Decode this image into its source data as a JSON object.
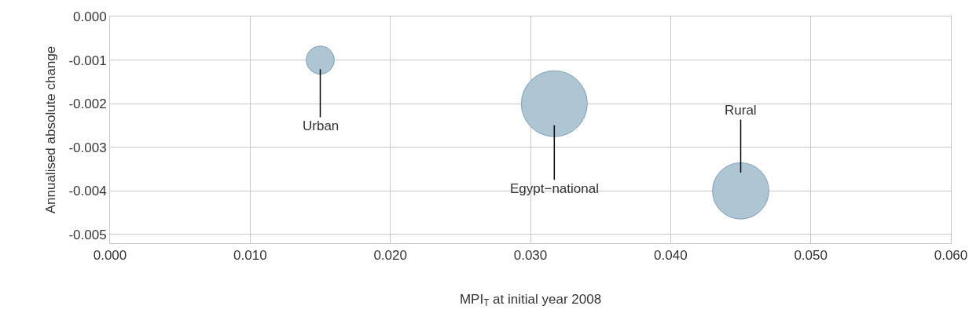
{
  "chart_data": {
    "type": "bubble",
    "xlabel": "MPI$_{T}$ at initial year 2008",
    "ylabel": "Annualised absolute change",
    "x": [
      0.015,
      0.0317,
      0.045
    ],
    "series": [
      {
        "color": "#aec5d4",
        "values": [
          -0.001,
          -0.002,
          -0.004
        ],
        "sizes": [
          0.18,
          1,
          0.73
        ]
      }
    ],
    "annotations": [
      {
        "text": "Urban",
        "x": 0.015,
        "y": -0.001
      },
      {
        "text": "Egypt−national",
        "x": 0.0317,
        "y": -0.002
      },
      {
        "text": "Rural",
        "x": 0.045,
        "y": -0.004
      }
    ],
    "xlim": [
      0,
      0.06
    ],
    "xticks": [
      {
        "value": 0,
        "label": "0.000"
      },
      {
        "value": 0.01,
        "label": "0.010"
      },
      {
        "value": 0.02,
        "label": "0.020"
      },
      {
        "value": 0.03,
        "label": "0.030"
      },
      {
        "value": 0.04,
        "label": "0.040"
      },
      {
        "value": 0.05,
        "label": "0.050"
      },
      {
        "value": 0.06,
        "label": "0.060"
      }
    ],
    "ylim": [
      -0.0052,
      0
    ],
    "yticks": [
      {
        "value": 0,
        "label": "0.000"
      },
      {
        "value": -0.001,
        "label": "-0.001"
      },
      {
        "value": -0.002,
        "label": "-0.002"
      },
      {
        "value": -0.003,
        "label": "-0.003"
      },
      {
        "value": -0.004,
        "label": "-0.004"
      },
      {
        "value": -0.005,
        "label": "-0.005"
      }
    ],
    "grid": true
  }
}
